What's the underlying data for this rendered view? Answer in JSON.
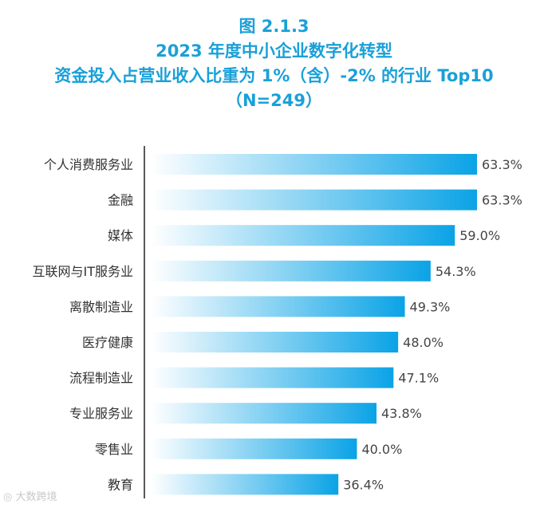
{
  "chart_data": {
    "type": "bar",
    "orientation": "horizontal",
    "title_lines": [
      "图 2.1.3",
      "2023 年度中小企业数字化转型",
      "资金投入占营业收入比重为 1%（含）-2% 的行业 Top10",
      "（N=249）"
    ],
    "categories": [
      "个人消费服务业",
      "金融",
      "媒体",
      "互联网与IT服务业",
      "离散制造业",
      "医疗健康",
      "流程制造业",
      "专业服务业",
      "零售业",
      "教育"
    ],
    "values": [
      63.3,
      63.3,
      59.0,
      54.3,
      49.3,
      48.0,
      47.1,
      43.8,
      40.0,
      36.4
    ],
    "value_labels": [
      "63.3%",
      "63.3%",
      "59.0%",
      "54.3%",
      "49.3%",
      "48.0%",
      "47.1%",
      "43.8%",
      "40.0%",
      "36.4%"
    ],
    "unit": "%",
    "xlim": [
      0,
      63.3
    ],
    "xlabel": "",
    "ylabel": "",
    "grid": false,
    "colors": {
      "title": "#1aa0d8",
      "bar_start": "#ffffff",
      "bar_end": "#0aa3e6",
      "axis": "#222222"
    }
  },
  "watermark": "大数跨境"
}
